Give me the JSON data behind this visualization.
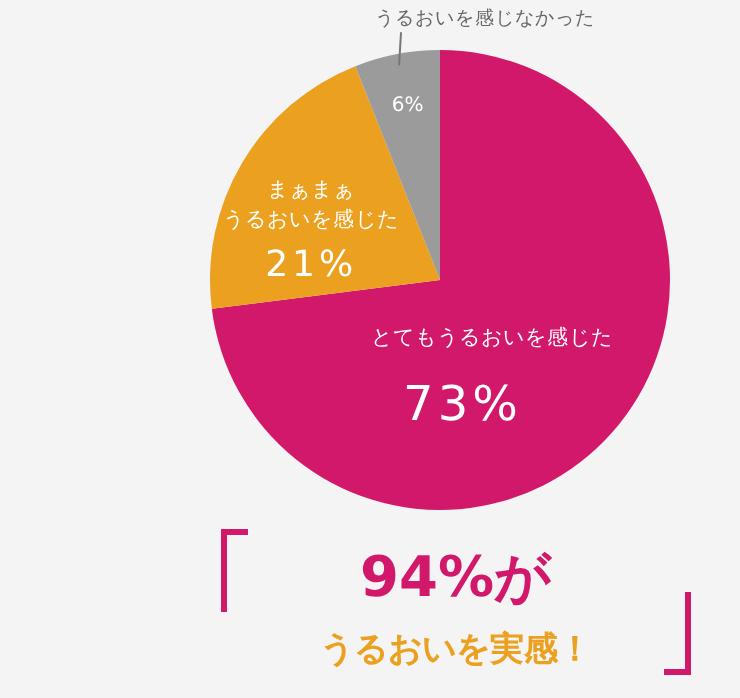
{
  "chart_data": {
    "type": "pie",
    "categories": [
      "とてもうるおいを感じた",
      "まぁまぁうるおいを感じた",
      "うるおいを感じなかった"
    ],
    "values": [
      73,
      21,
      6
    ],
    "colors": [
      "#d2186b",
      "#eba11f",
      "#9b9b9b"
    ],
    "value_labels": [
      "73%",
      "21%",
      "6%"
    ],
    "annotations": [
      "94%が",
      "うるおいを実感！"
    ]
  }
}
